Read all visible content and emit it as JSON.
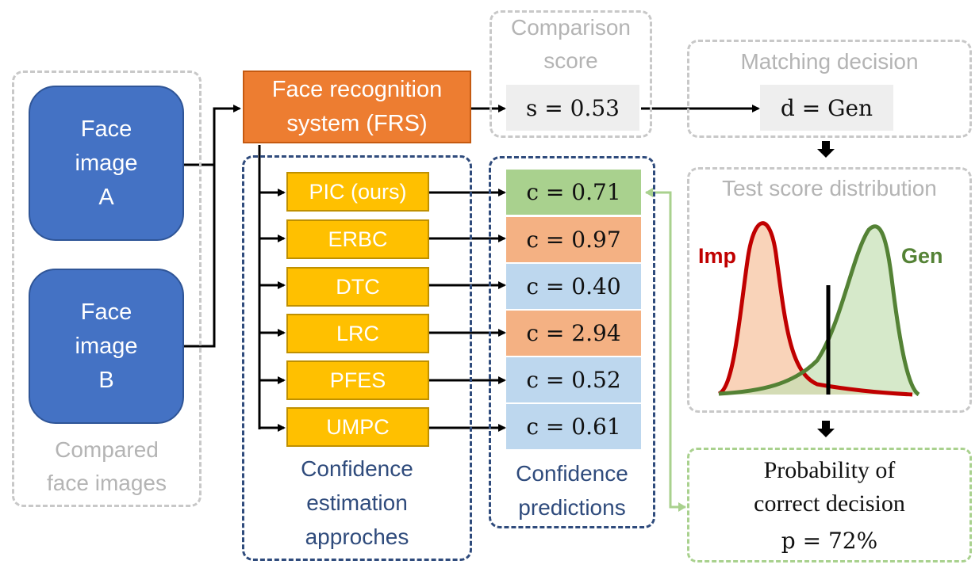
{
  "face_a": {
    "label": "Face\nimage\nA"
  },
  "face_b": {
    "label": "Face\nimage\nB"
  },
  "compared_caption": "Compared\nface images",
  "frs": {
    "label": "Face recognition\nsystem (FRS)"
  },
  "comparison": {
    "title": "Comparison\nscore",
    "value": "s = 0.53"
  },
  "matching": {
    "title": "Matching decision",
    "value": "d = Gen"
  },
  "methods": [
    "PIC (ours)",
    "ERBC",
    "DTC",
    "LRC",
    "PFES",
    "UMPC"
  ],
  "methods_caption": "Confidence\nestimation\napproches",
  "predictions": [
    {
      "text": "c = 0.71",
      "color": "#a9d18e"
    },
    {
      "text": "c = 0.97",
      "color": "#f4b183"
    },
    {
      "text": "c = 0.40",
      "color": "#bdd7ee"
    },
    {
      "text": "c = 2.94",
      "color": "#f4b183"
    },
    {
      "text": "c = 0.52",
      "color": "#bdd7ee"
    },
    {
      "text": "c = 0.61",
      "color": "#bdd7ee"
    }
  ],
  "predictions_caption": "Confidence\npredictions",
  "distribution": {
    "title": "Test score  distribution",
    "imp_label": "Imp",
    "gen_label": "Gen",
    "imp_color": "#c00000",
    "gen_color": "#548235"
  },
  "probability": {
    "text": "Probability of\ncorrect decision",
    "value": "p = 72%"
  },
  "colors": {
    "frs": "#ed7d31",
    "face": "#4472c4",
    "method": "#ffc000",
    "accent_green": "#a9d18e",
    "navy": "#2f4b7c"
  }
}
